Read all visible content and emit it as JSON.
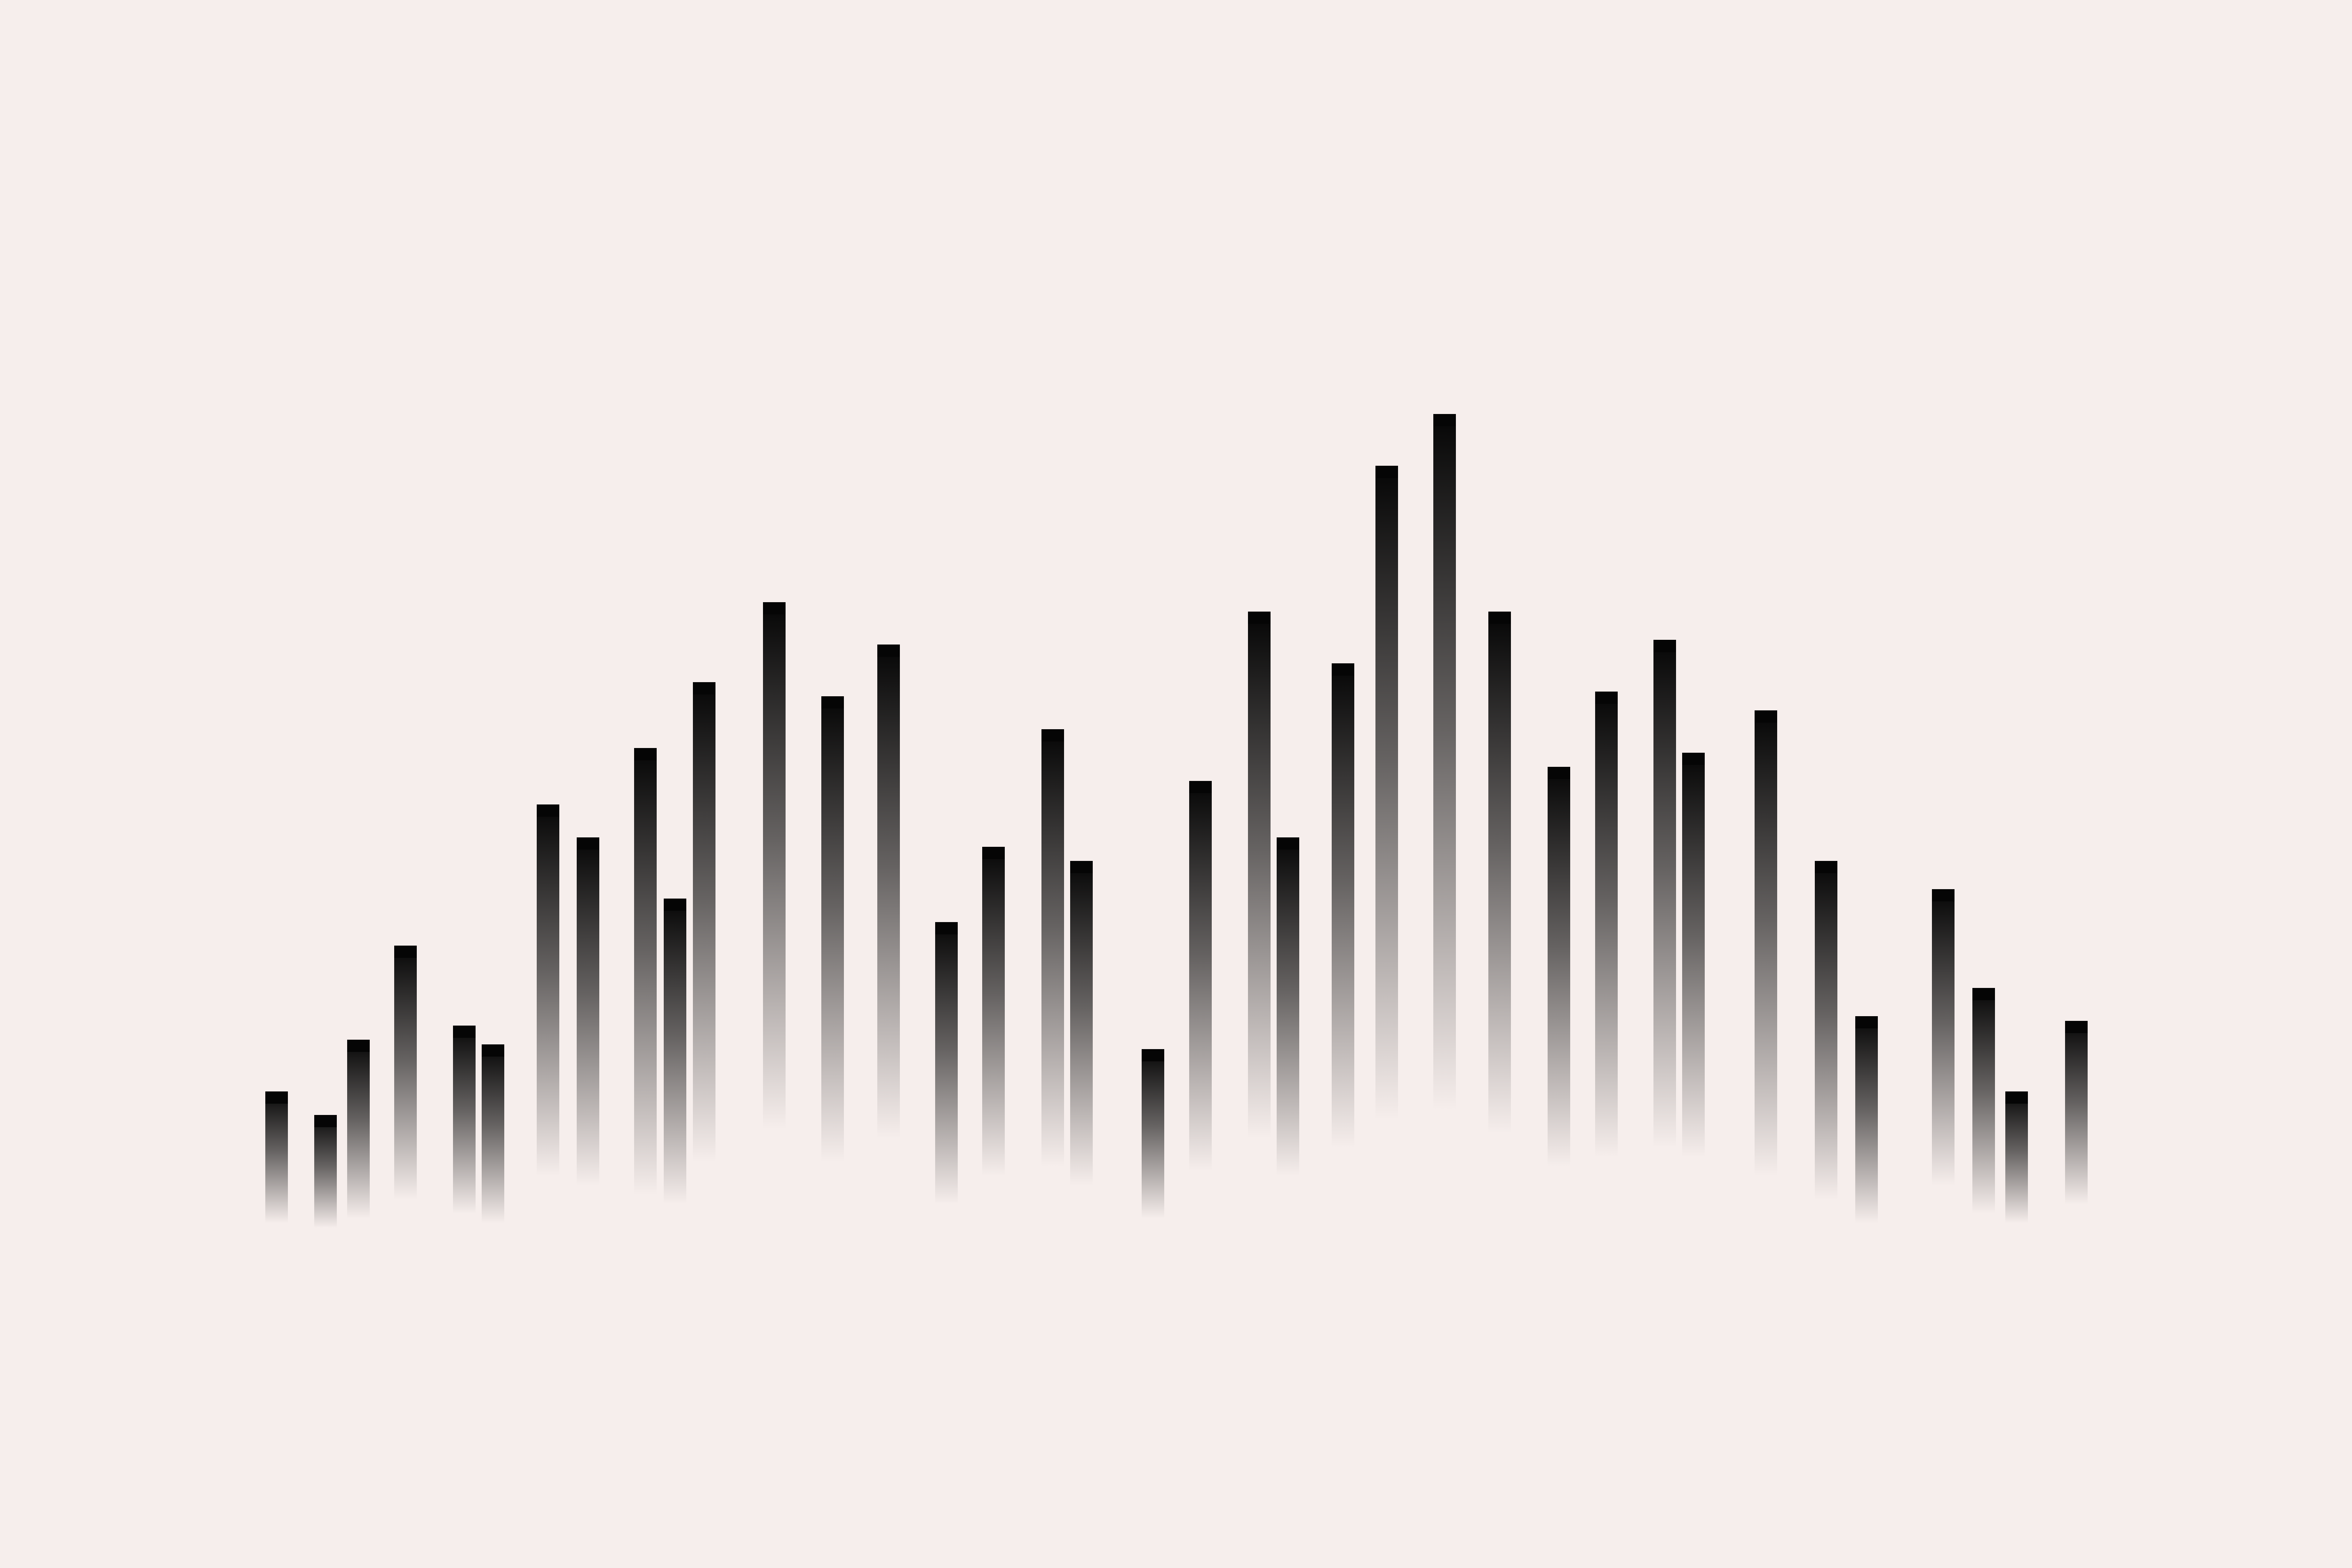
{
  "colors": {
    "background": "#f6eeec",
    "bar": "#050505"
  },
  "bars": [
    {
      "level": 0.28
    },
    {
      "level": 0.24
    },
    {
      "level": 0.38
    },
    {
      "level": 0.54
    },
    {
      "level": 0.4
    },
    {
      "level": 0.38
    },
    {
      "level": 0.79
    },
    {
      "level": 0.74
    },
    {
      "level": 0.95
    },
    {
      "level": 0.65
    },
    {
      "level": 1.02
    },
    {
      "level": 1.12
    },
    {
      "level": 0.99
    },
    {
      "level": 1.05
    },
    {
      "level": 0.6
    },
    {
      "level": 0.7
    },
    {
      "level": 0.93
    },
    {
      "level": 0.69
    },
    {
      "level": 0.36
    },
    {
      "level": 0.83
    },
    {
      "level": 1.12
    },
    {
      "level": 0.72
    },
    {
      "level": 1.03
    },
    {
      "level": 1.39
    },
    {
      "level": 1.48
    },
    {
      "level": 1.11
    },
    {
      "level": 0.85
    },
    {
      "level": 0.99
    },
    {
      "level": 1.08
    },
    {
      "level": 0.86
    },
    {
      "level": 0.99
    },
    {
      "level": 0.72
    },
    {
      "level": 0.44
    },
    {
      "level": 0.63
    },
    {
      "level": 0.48
    },
    {
      "level": 0.28
    },
    {
      "level": 0.39
    }
  ]
}
